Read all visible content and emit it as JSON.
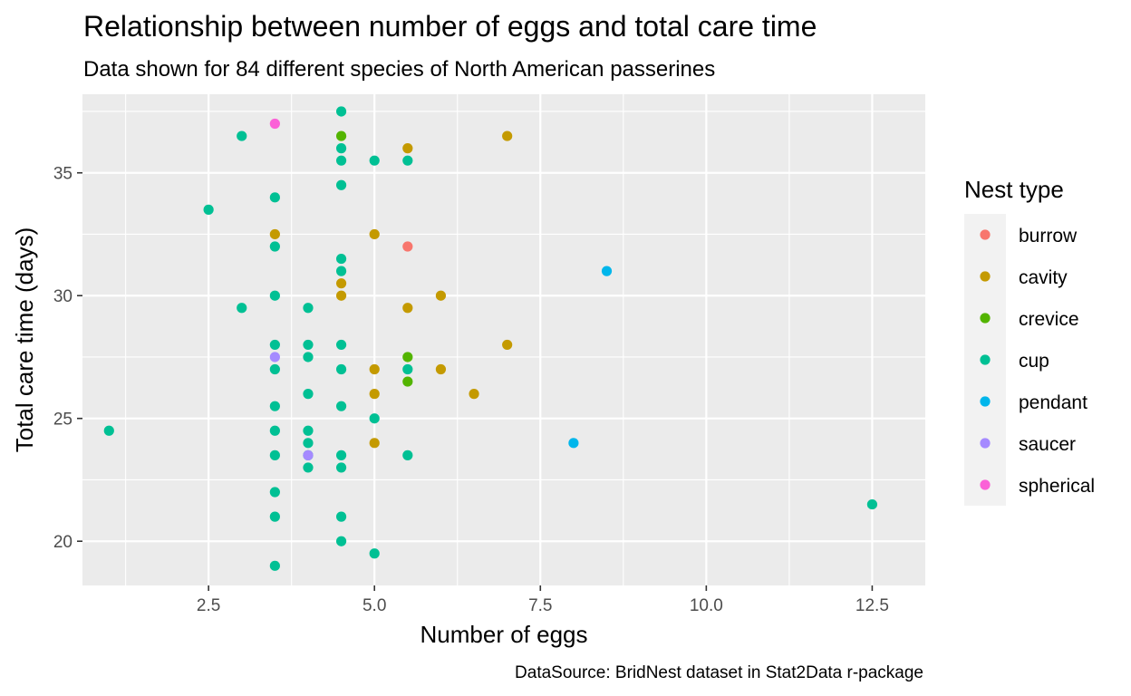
{
  "chart_data": {
    "type": "scatter",
    "title": "Relationship between number of eggs and total care time",
    "subtitle": "Data shown for 84 different species of North American passerines",
    "xlabel": "Number of eggs",
    "ylabel": "Total care time (days)",
    "caption": "DataSource: BridNest dataset in Stat2Data r-package",
    "xlim": [
      0.6,
      13.3
    ],
    "ylim": [
      18.2,
      38.2
    ],
    "x_ticks": [
      2.5,
      5.0,
      7.5,
      10.0,
      12.5
    ],
    "x_tick_labels": [
      "2.5",
      "5.0",
      "7.5",
      "10.0",
      "12.5"
    ],
    "y_ticks": [
      20,
      25,
      30,
      35
    ],
    "y_tick_labels": [
      "20",
      "25",
      "30",
      "35"
    ],
    "grid": true,
    "legend": {
      "title": "Nest type",
      "placement": "right"
    },
    "series": [
      {
        "name": "burrow",
        "color": "#F8766D",
        "points": [
          [
            5.5,
            32.0
          ]
        ]
      },
      {
        "name": "cavity",
        "color": "#C49A00",
        "points": [
          [
            3.5,
            32.5
          ],
          [
            4.5,
            30.5
          ],
          [
            4.5,
            30.0
          ],
          [
            5.0,
            32.5
          ],
          [
            5.0,
            27.0
          ],
          [
            5.0,
            26.0
          ],
          [
            5.0,
            24.0
          ],
          [
            5.5,
            36.0
          ],
          [
            5.5,
            29.5
          ],
          [
            6.0,
            30.0
          ],
          [
            6.0,
            27.0
          ],
          [
            6.5,
            26.0
          ],
          [
            7.0,
            36.5
          ],
          [
            7.0,
            28.0
          ]
        ]
      },
      {
        "name": "crevice",
        "color": "#53B400",
        "points": [
          [
            4.5,
            36.5
          ],
          [
            5.5,
            27.5
          ],
          [
            5.5,
            26.5
          ]
        ]
      },
      {
        "name": "cup",
        "color": "#00C094",
        "points": [
          [
            1.0,
            24.5
          ],
          [
            2.5,
            33.5
          ],
          [
            3.0,
            36.5
          ],
          [
            3.0,
            29.5
          ],
          [
            3.5,
            34.0
          ],
          [
            3.5,
            32.0
          ],
          [
            3.5,
            30.0
          ],
          [
            3.5,
            28.0
          ],
          [
            3.5,
            27.0
          ],
          [
            3.5,
            25.5
          ],
          [
            3.5,
            24.5
          ],
          [
            3.5,
            23.5
          ],
          [
            3.5,
            22.0
          ],
          [
            3.5,
            21.0
          ],
          [
            3.5,
            19.0
          ],
          [
            4.0,
            29.5
          ],
          [
            4.0,
            28.0
          ],
          [
            4.0,
            27.5
          ],
          [
            4.0,
            26.0
          ],
          [
            4.0,
            24.5
          ],
          [
            4.0,
            24.0
          ],
          [
            4.0,
            23.5
          ],
          [
            4.0,
            23.0
          ],
          [
            4.5,
            37.5
          ],
          [
            4.5,
            36.0
          ],
          [
            4.5,
            35.5
          ],
          [
            4.5,
            34.5
          ],
          [
            4.5,
            31.5
          ],
          [
            4.5,
            31.0
          ],
          [
            4.5,
            28.0
          ],
          [
            4.5,
            27.0
          ],
          [
            4.5,
            25.5
          ],
          [
            4.5,
            23.5
          ],
          [
            4.5,
            23.0
          ],
          [
            4.5,
            21.0
          ],
          [
            4.5,
            20.0
          ],
          [
            5.0,
            35.5
          ],
          [
            5.0,
            25.0
          ],
          [
            5.0,
            19.5
          ],
          [
            5.5,
            35.5
          ],
          [
            5.5,
            27.0
          ],
          [
            5.5,
            23.5
          ],
          [
            12.5,
            21.5
          ]
        ]
      },
      {
        "name": "pendant",
        "color": "#00B6EB",
        "points": [
          [
            8.5,
            31.0
          ],
          [
            8.0,
            24.0
          ]
        ]
      },
      {
        "name": "saucer",
        "color": "#A58AFF",
        "points": [
          [
            3.5,
            27.5
          ],
          [
            4.0,
            23.5
          ]
        ]
      },
      {
        "name": "spherical",
        "color": "#FB61D7",
        "points": [
          [
            3.5,
            37.0
          ]
        ]
      }
    ]
  }
}
